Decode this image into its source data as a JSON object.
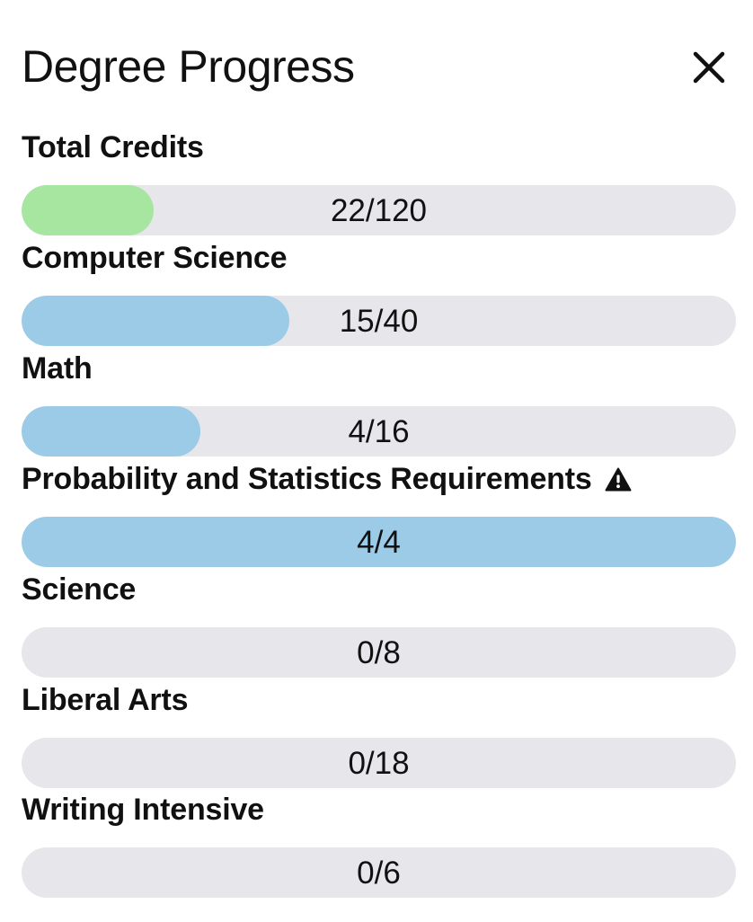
{
  "panel": {
    "title": "Degree Progress",
    "close_icon": "close-icon"
  },
  "colors": {
    "track": "#e6e6eb",
    "total_fill": "#a6e6a0",
    "category_fill": "#9ccbe8",
    "warning_icon": "#111111"
  },
  "requirements": [
    {
      "label": "Total Credits",
      "progress_text": "22/120",
      "completed": 22,
      "required": 120,
      "color": "#a6e6a0",
      "warning": false
    },
    {
      "label": "Computer Science",
      "progress_text": "15/40",
      "completed": 15,
      "required": 40,
      "color": "#9ccbe8",
      "warning": false
    },
    {
      "label": "Math",
      "progress_text": "4/16",
      "completed": 4,
      "required": 16,
      "color": "#9ccbe8",
      "warning": false
    },
    {
      "label": "Probability and Statistics Requirements",
      "progress_text": "4/4",
      "completed": 4,
      "required": 4,
      "color": "#9ccbe8",
      "warning": true,
      "warning_icon": "warning-icon"
    },
    {
      "label": "Science",
      "progress_text": "0/8",
      "completed": 0,
      "required": 8,
      "color": "#9ccbe8",
      "warning": false
    },
    {
      "label": "Liberal Arts",
      "progress_text": "0/18",
      "completed": 0,
      "required": 18,
      "color": "#9ccbe8",
      "warning": false
    },
    {
      "label": "Writing Intensive",
      "progress_text": "0/6",
      "completed": 0,
      "required": 6,
      "color": "#9ccbe8",
      "warning": false
    }
  ]
}
